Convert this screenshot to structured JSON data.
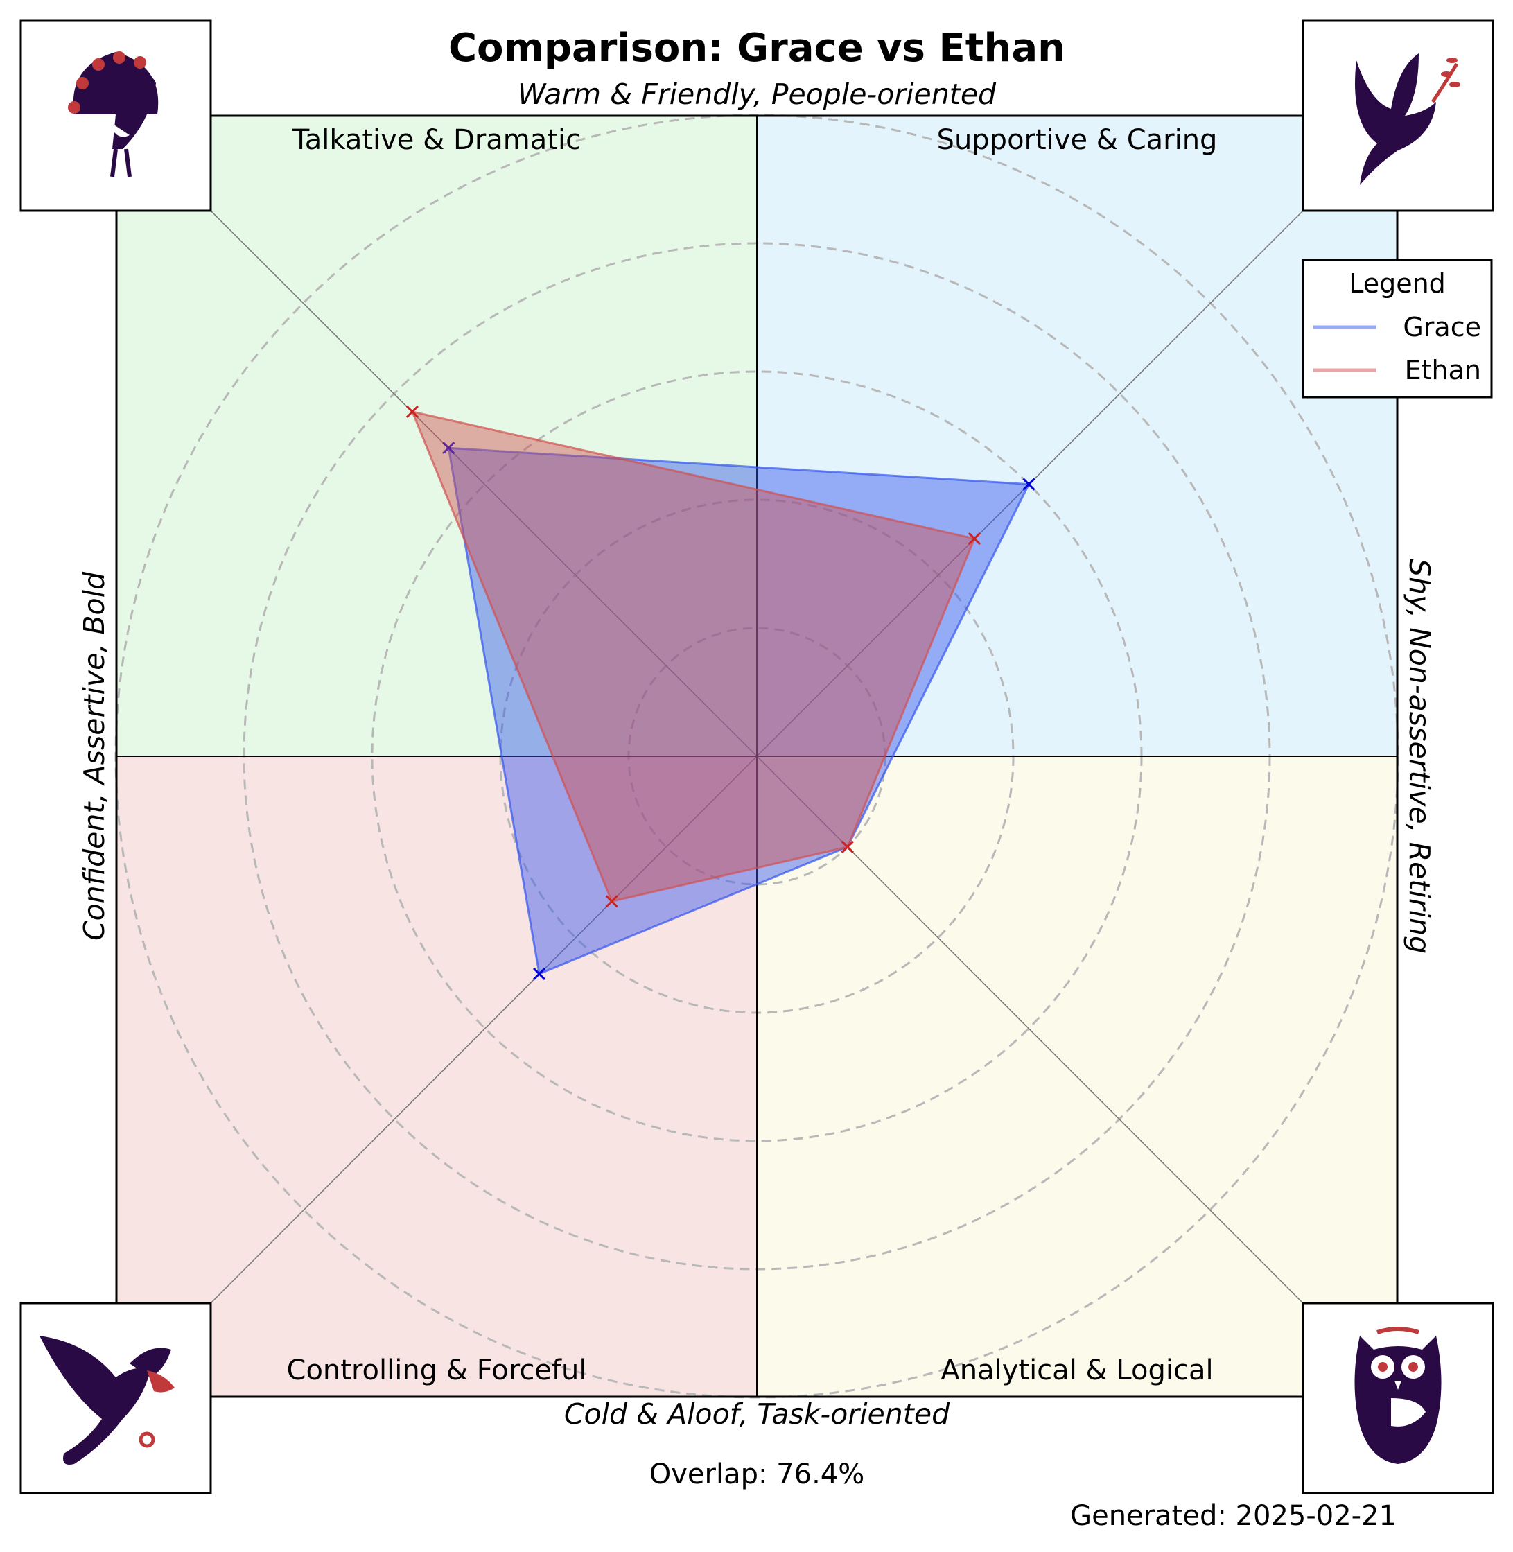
{
  "chart_data": {
    "type": "radar",
    "title": "Comparison: Grace vs Ethan",
    "axis_labels": {
      "top": "Warm & Friendly, People-oriented",
      "bottom": "Cold & Aloof, Task-oriented",
      "left": "Confident, Assertive, Bold",
      "right": "Shy, Non-assertive, Retiring"
    },
    "quadrants": [
      {
        "label": "Talkative & Dramatic",
        "position": "top-left",
        "color": "#e6f9e6",
        "icon": "peacock-icon"
      },
      {
        "label": "Supportive & Caring",
        "position": "top-right",
        "color": "#e4f4fd",
        "icon": "dove-icon"
      },
      {
        "label": "Controlling & Forceful",
        "position": "bottom-left",
        "color": "#f9e4e4",
        "icon": "eagle-icon"
      },
      {
        "label": "Analytical & Logical",
        "position": "bottom-right",
        "color": "#fbfaeb",
        "icon": "owl-icon"
      }
    ],
    "axes_order": [
      "Talkative & Dramatic",
      "Supportive & Caring",
      "Analytical & Logical",
      "Controlling & Forceful"
    ],
    "range": [
      0,
      5
    ],
    "rings": [
      1,
      2,
      3,
      4,
      5
    ],
    "grid": true,
    "legend": {
      "title": "Legend",
      "placement": "top-right"
    },
    "series": [
      {
        "name": "Grace",
        "color": "#3355ee",
        "marker_color": "#0000dd",
        "values": [
          3.4,
          3.0,
          1.0,
          2.4
        ]
      },
      {
        "name": "Ethan",
        "color": "#d05050",
        "marker_color": "#cc2222",
        "values": [
          3.8,
          2.4,
          1.0,
          1.6
        ]
      }
    ]
  },
  "footer": {
    "overlap": "Overlap: 76.4%",
    "generated": "Generated: 2025-02-21"
  }
}
